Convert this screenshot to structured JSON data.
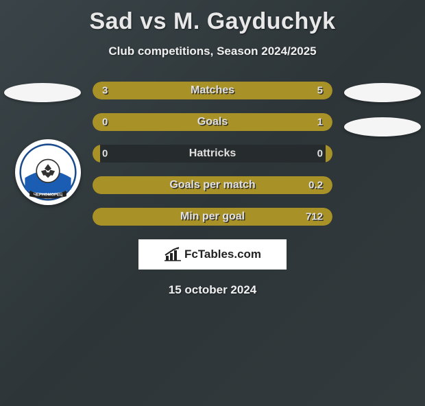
{
  "title": "Sad vs M. Gayduchyk",
  "subtitle": "Club competitions, Season 2024/2025",
  "date": "15 october 2024",
  "brand": "FcTables.com",
  "bar_color": "#a89127",
  "bar_bg": "#262c2e",
  "stats": [
    {
      "label": "Matches",
      "left_val": "3",
      "right_val": "5",
      "left_pct": 37.5,
      "right_pct": 62.5
    },
    {
      "label": "Goals",
      "left_val": "0",
      "right_val": "1",
      "left_pct": 3,
      "right_pct": 97
    },
    {
      "label": "Hattricks",
      "left_val": "0",
      "right_val": "0",
      "left_pct": 3,
      "right_pct": 3
    },
    {
      "label": "Goals per match",
      "left_val": "",
      "right_val": "0.2",
      "left_pct": 3,
      "right_pct": 97
    },
    {
      "label": "Min per goal",
      "left_val": "",
      "right_val": "712",
      "left_pct": 3,
      "right_pct": 97
    }
  ]
}
